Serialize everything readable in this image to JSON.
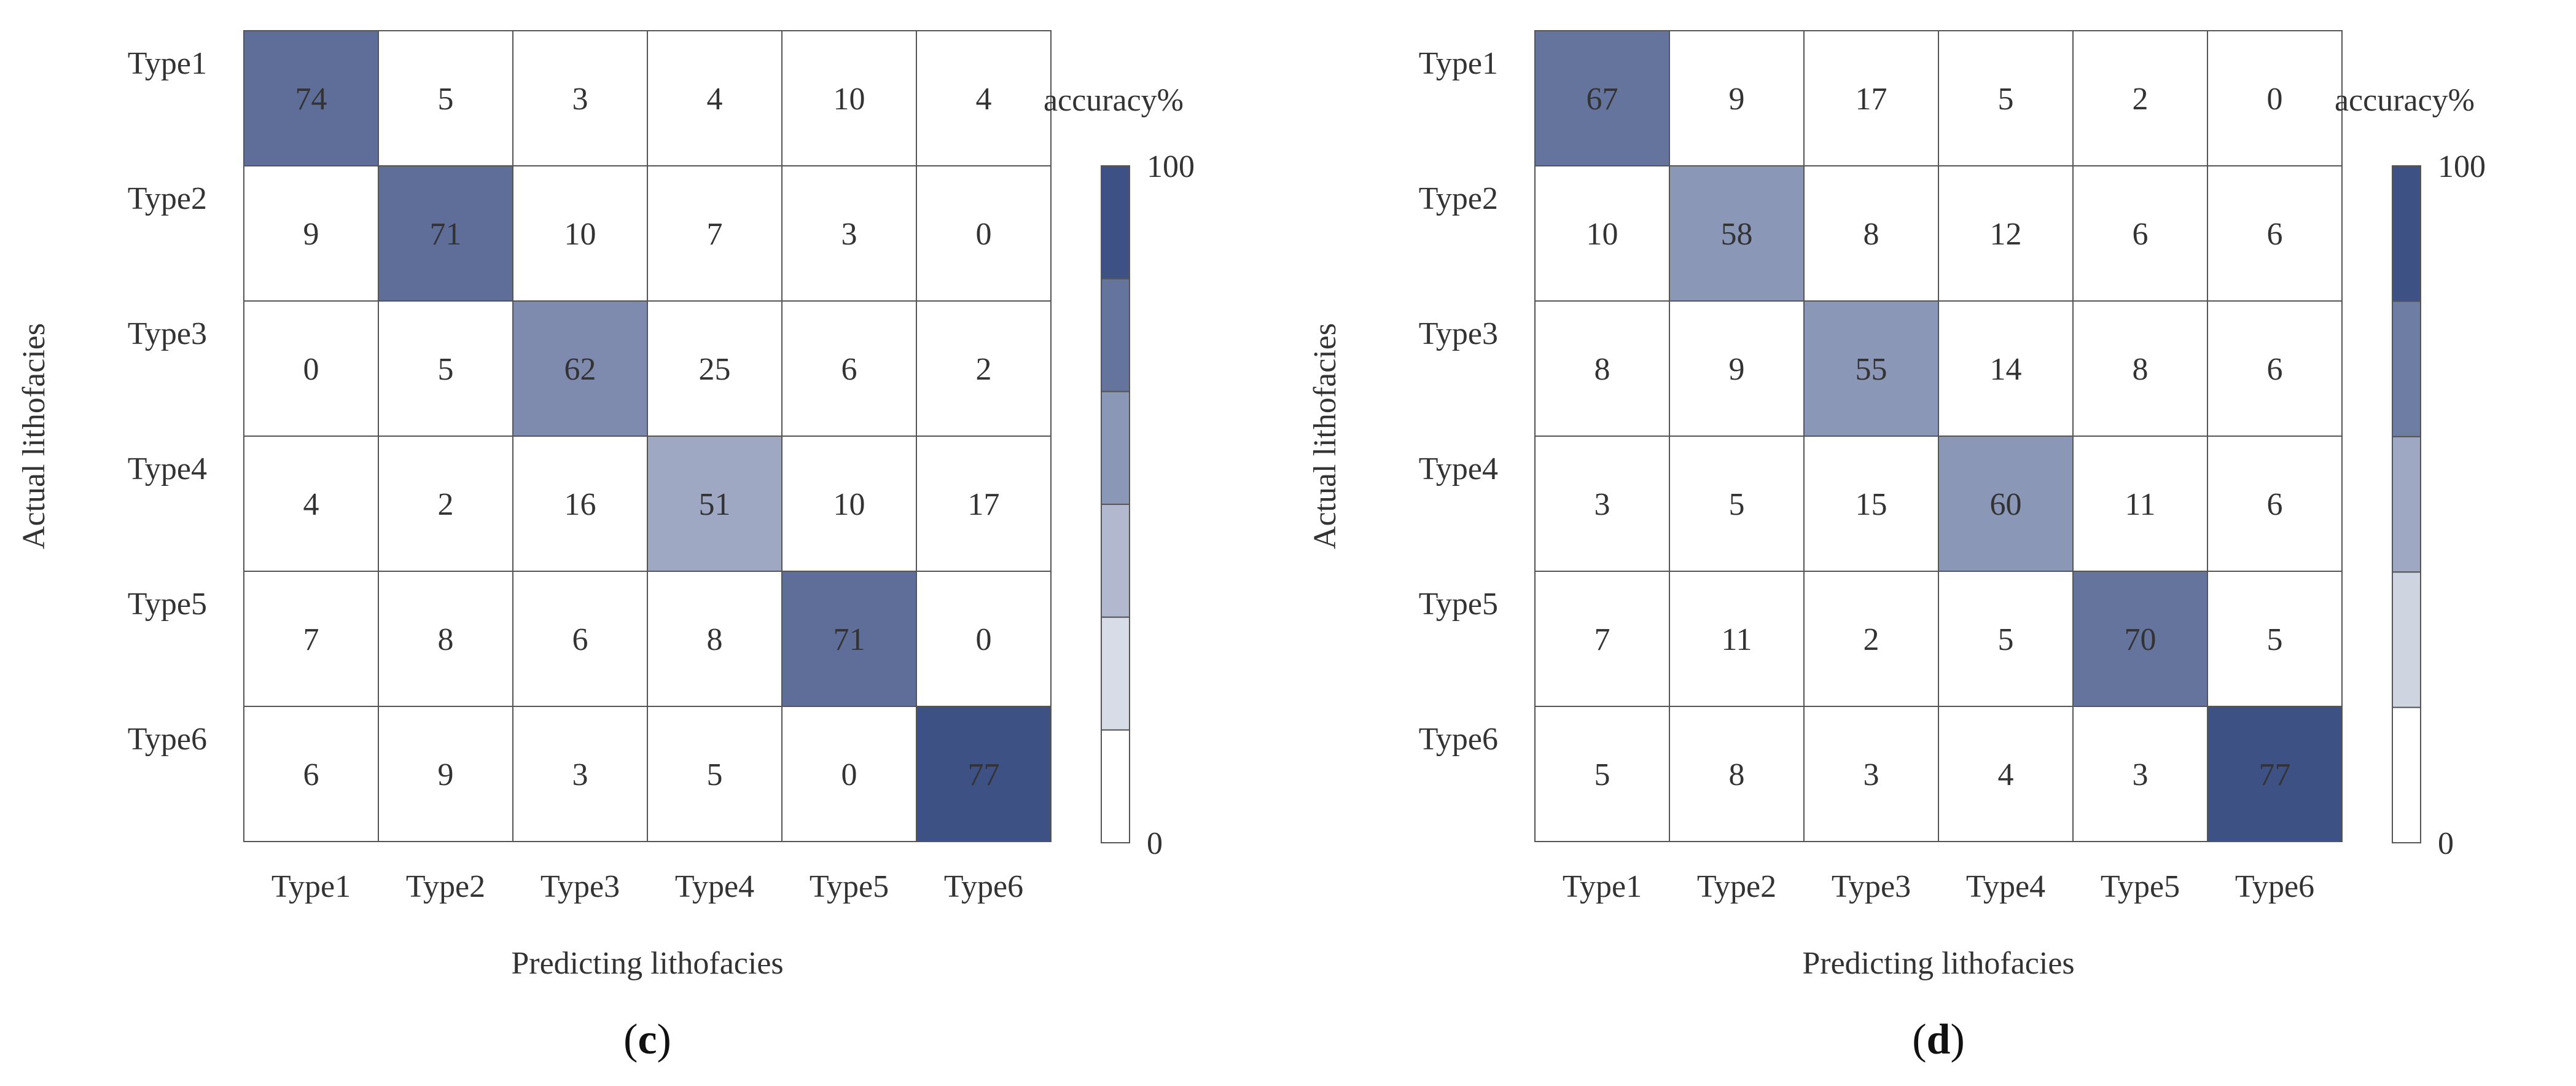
{
  "chart_data": [
    {
      "type": "heatmap",
      "panel_label": "c",
      "xlabel": "Predicting lithofacies",
      "ylabel": "Actual lithofacies",
      "x_categories": [
        "Type1",
        "Type2",
        "Type3",
        "Type4",
        "Type5",
        "Type6"
      ],
      "y_categories": [
        "Type1",
        "Type2",
        "Type3",
        "Type4",
        "Type5",
        "Type6"
      ],
      "values": [
        [
          74,
          5,
          3,
          4,
          10,
          4
        ],
        [
          9,
          71,
          10,
          7,
          3,
          0
        ],
        [
          0,
          5,
          62,
          25,
          6,
          2
        ],
        [
          4,
          2,
          16,
          51,
          10,
          17
        ],
        [
          7,
          8,
          6,
          8,
          71,
          0
        ],
        [
          6,
          9,
          3,
          5,
          0,
          77
        ]
      ],
      "colorbar": {
        "title": "accuracy%",
        "min": 0,
        "max": 100,
        "min_label": "0",
        "max_label": "100",
        "bands": 6
      }
    },
    {
      "type": "heatmap",
      "panel_label": "d",
      "xlabel": "Predicting lithofacies",
      "ylabel": "Actual lithofacies",
      "x_categories": [
        "Type1",
        "Type2",
        "Type3",
        "Type4",
        "Type5",
        "Type6"
      ],
      "y_categories": [
        "Type1",
        "Type2",
        "Type3",
        "Type4",
        "Type5",
        "Type6"
      ],
      "values": [
        [
          67,
          9,
          17,
          5,
          2,
          0
        ],
        [
          10,
          58,
          8,
          12,
          6,
          6
        ],
        [
          8,
          9,
          55,
          14,
          8,
          6
        ],
        [
          3,
          5,
          15,
          60,
          11,
          6
        ],
        [
          7,
          11,
          2,
          5,
          70,
          5
        ],
        [
          5,
          8,
          3,
          4,
          3,
          77
        ]
      ],
      "colorbar": {
        "title": "accuracy%",
        "min": 0,
        "max": 100,
        "min_label": "0",
        "max_label": "100",
        "bands": 5
      }
    }
  ],
  "colors": {
    "low": "#ffffff",
    "high": "#3e5185",
    "grid": "#555555",
    "text": "#333333"
  }
}
